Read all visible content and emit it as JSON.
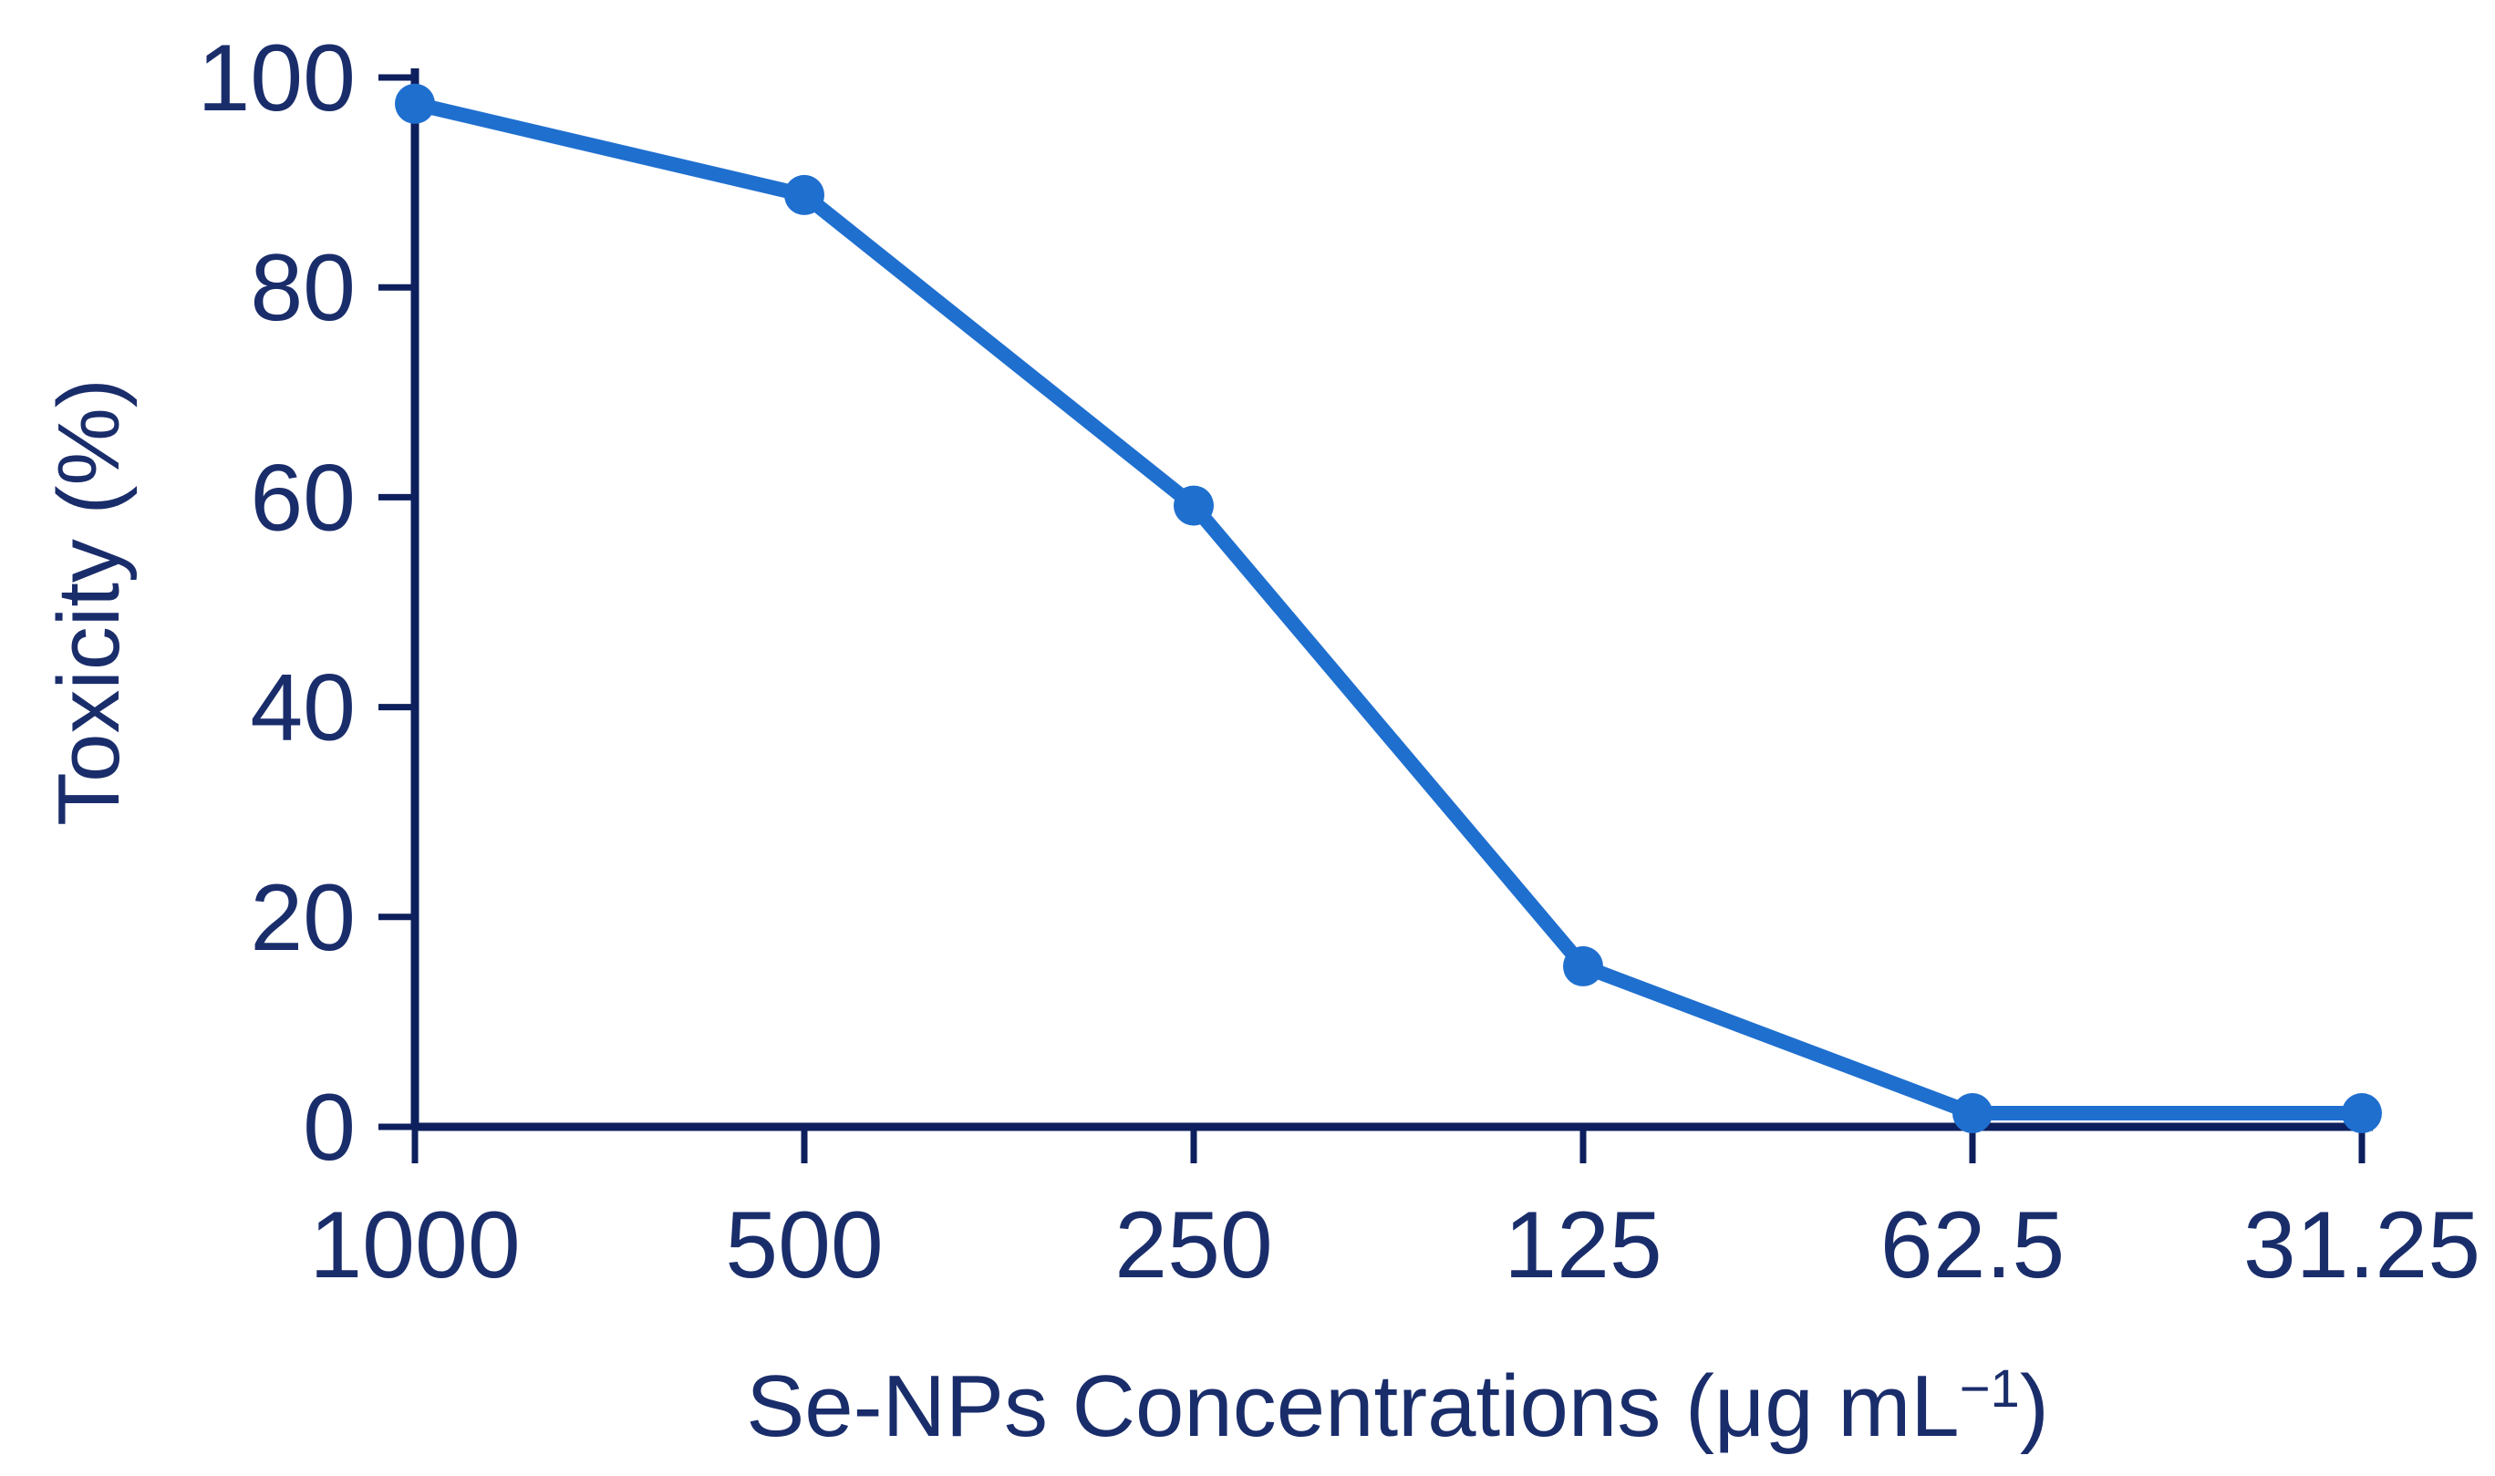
{
  "chart_data": {
    "type": "line",
    "title": "",
    "xlabel": "Se-NPs Concentrations (μg mL",
    "xlabel_superscript": "−1",
    "xlabel_suffix": ")",
    "ylabel": "Toxicity (%)",
    "categories": [
      "1000",
      "500",
      "250",
      "125",
      "62.5",
      "31.25"
    ],
    "series": [
      {
        "values": [
          97.5,
          88.8,
          59.2,
          15.3,
          1.3,
          1.3
        ]
      }
    ],
    "ylim": [
      0,
      100
    ],
    "yticks": [
      "0",
      "20",
      "40",
      "60",
      "80",
      "100"
    ],
    "ytick_values": [
      0,
      20,
      40,
      60,
      80,
      100
    ],
    "grid": false,
    "colors": {
      "axis": "#0d1f5c",
      "text": "#1a2d6b",
      "series": "#1f6fcf"
    }
  }
}
